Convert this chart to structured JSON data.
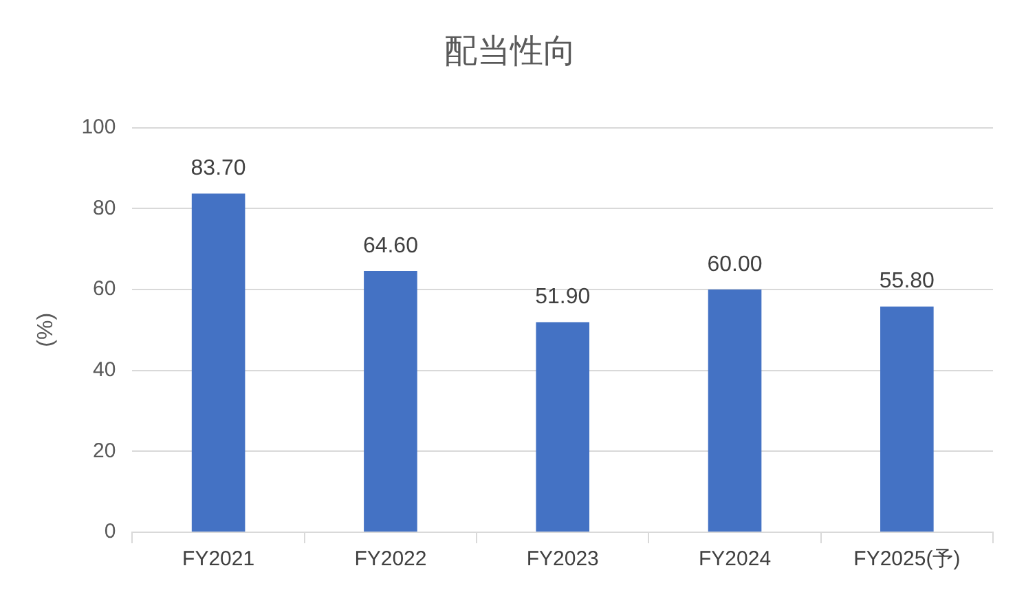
{
  "chart_data": {
    "type": "bar",
    "title": "配当性向",
    "ylabel": "(%)",
    "categories": [
      "FY2021",
      "FY2022",
      "FY2023",
      "FY2024",
      "FY2025(予)"
    ],
    "values": [
      83.7,
      64.6,
      51.9,
      60.0,
      55.8
    ],
    "value_labels": [
      "83.70",
      "64.60",
      "51.90",
      "60.00",
      "55.80"
    ],
    "color": "#4472c4",
    "ylim": [
      0,
      100
    ],
    "yticks": [
      0,
      20,
      40,
      60,
      80,
      100
    ],
    "grid": "y",
    "legend": false
  }
}
